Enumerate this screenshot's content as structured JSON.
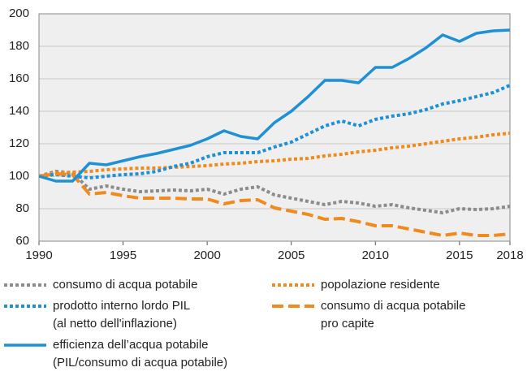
{
  "chart_data": {
    "type": "line",
    "x": [
      1990,
      1991,
      1992,
      1993,
      1994,
      1995,
      1996,
      1997,
      1998,
      1999,
      2000,
      2001,
      2002,
      2003,
      2004,
      2005,
      2006,
      2007,
      2008,
      2009,
      2010,
      2011,
      2012,
      2013,
      2014,
      2015,
      2016,
      2017,
      2018
    ],
    "xlim": [
      1990,
      2018
    ],
    "xticks": [
      1990,
      1995,
      2000,
      2005,
      2010,
      2015,
      2018
    ],
    "ylim": [
      60,
      200
    ],
    "yticks": [
      60,
      80,
      100,
      120,
      140,
      160,
      180,
      200
    ],
    "grid": true,
    "legend": "bottom",
    "series": [
      {
        "name": "consumo di acqua potabile",
        "color": "#8c8c8c",
        "style": "dotted",
        "values": [
          100,
          103,
          102,
          92,
          94,
          92,
          90.5,
          91,
          91.5,
          91,
          92,
          89,
          92,
          93.5,
          88.5,
          86.5,
          84.5,
          82.5,
          84.5,
          83.5,
          81.5,
          82.5,
          80.5,
          79,
          77.5,
          80,
          79.5,
          80,
          81.5
        ]
      },
      {
        "name": "popolazione residente",
        "color": "#f08a1c",
        "style": "dotted",
        "values": [
          100,
          102,
          102.5,
          103,
          104,
          104.5,
          105,
          105,
          105.5,
          106,
          106.5,
          107.5,
          108,
          109,
          109.5,
          110.5,
          111,
          112.5,
          113.5,
          115,
          116,
          117.5,
          118.5,
          120,
          121.5,
          123,
          124,
          125.5,
          126.5
        ]
      },
      {
        "name": "prodotto interno lordo PIL\n(al netto dell'inflazione)",
        "color": "#1e90d6",
        "style": "dotted",
        "values": [
          100,
          101,
          100,
          99,
          100,
          101,
          101.5,
          103,
          106,
          108,
          112,
          114.5,
          114.5,
          114.5,
          118,
          121,
          126,
          131,
          134,
          131,
          135,
          137,
          138.5,
          141,
          144.5,
          146.5,
          149,
          151.5,
          156
        ]
      },
      {
        "name": "consumo di acqua potabile\npro capite",
        "color": "#f08a1c",
        "style": "dashed",
        "values": [
          100,
          101.5,
          101,
          89,
          90,
          88,
          86.5,
          86.5,
          86.5,
          86,
          86,
          83,
          85,
          85.5,
          80.5,
          78.5,
          76.5,
          73.5,
          74,
          72,
          69.5,
          69.5,
          67.5,
          65.5,
          63.5,
          65,
          63.5,
          63.5,
          64.5
        ]
      },
      {
        "name": "efficienza dell’acqua potabile\n(PIL/consumo di acqua potabile)",
        "color": "#1e90d6",
        "style": "solid",
        "values": [
          100,
          97,
          97,
          108,
          107,
          109.5,
          112,
          114,
          116.5,
          119,
          123,
          128,
          124.5,
          123,
          133,
          140,
          149,
          159,
          159,
          157.5,
          167,
          167,
          172.5,
          179,
          187,
          183,
          188,
          189.5,
          190
        ]
      }
    ]
  }
}
